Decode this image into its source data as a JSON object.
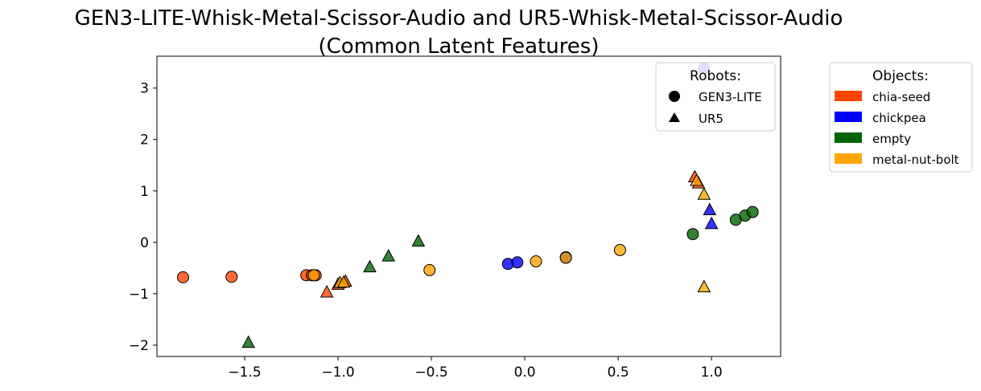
{
  "chart_data": {
    "type": "scatter",
    "title_line1": "GEN3-LITE-Whisk-Metal-Scissor-Audio and UR5-Whisk-Metal-Scissor-Audio",
    "title_line2": "(Common Latent Features)",
    "xlabel": "",
    "ylabel": "",
    "xlim": [
      -1.97,
      1.37
    ],
    "ylim": [
      -2.22,
      3.62
    ],
    "x_ticks": [
      -1.5,
      -1.0,
      -0.5,
      0.0,
      0.5,
      1.0
    ],
    "x_tick_labels": [
      "−1.5",
      "−1.0",
      "−0.5",
      "0.0",
      "0.5",
      "1.0"
    ],
    "y_ticks": [
      -2,
      -1,
      0,
      1,
      2,
      3
    ],
    "y_tick_labels": [
      "−2",
      "−1",
      "0",
      "1",
      "2",
      "3"
    ],
    "grid": false,
    "legend_robots": {
      "title": "Robots:",
      "placement": "top-right inside plot",
      "entries": [
        {
          "label": "GEN3-LITE",
          "marker": "circle"
        },
        {
          "label": "UR5",
          "marker": "triangle"
        }
      ]
    },
    "legend_objects": {
      "title": "Objects:",
      "placement": "right outside plot",
      "entries": [
        {
          "label": "chia-seed",
          "color": "#FF4500"
        },
        {
          "label": "chickpea",
          "color": "#0000FF"
        },
        {
          "label": "empty",
          "color": "#006400"
        },
        {
          "label": "metal-nut-bolt",
          "color": "#FFA500"
        }
      ]
    },
    "series": [
      {
        "robot": "GEN3-LITE",
        "object": "chia-seed",
        "marker": "circle",
        "color": "#FF4500",
        "points": [
          [
            -1.83,
            -0.68
          ],
          [
            -1.57,
            -0.67
          ],
          [
            -1.17,
            -0.64
          ],
          [
            -1.14,
            -0.64
          ],
          [
            -1.12,
            -0.64
          ]
        ]
      },
      {
        "robot": "GEN3-LITE",
        "object": "chickpea",
        "marker": "circle",
        "color": "#0000FF",
        "points": [
          [
            -0.09,
            -0.42
          ],
          [
            -0.04,
            -0.39
          ],
          [
            0.22,
            -0.29
          ],
          [
            0.96,
            3.38
          ]
        ]
      },
      {
        "robot": "GEN3-LITE",
        "object": "empty",
        "marker": "circle",
        "color": "#006400",
        "points": [
          [
            0.9,
            0.16
          ],
          [
            1.13,
            0.44
          ],
          [
            1.18,
            0.52
          ],
          [
            1.22,
            0.59
          ]
        ]
      },
      {
        "robot": "GEN3-LITE",
        "object": "metal-nut-bolt",
        "marker": "circle",
        "color": "#FFA500",
        "points": [
          [
            -1.13,
            -0.64
          ],
          [
            -0.51,
            -0.54
          ],
          [
            0.06,
            -0.37
          ],
          [
            0.22,
            -0.3
          ],
          [
            0.51,
            -0.15
          ]
        ]
      },
      {
        "robot": "UR5",
        "object": "chia-seed",
        "marker": "triangle",
        "color": "#FF4500",
        "points": [
          [
            -1.06,
            -0.97
          ],
          [
            -1.0,
            -0.82
          ],
          [
            -0.96,
            -0.76
          ],
          [
            0.91,
            1.27
          ],
          [
            0.93,
            1.15
          ]
        ]
      },
      {
        "robot": "UR5",
        "object": "chickpea",
        "marker": "triangle",
        "color": "#0000FF",
        "points": [
          [
            0.99,
            0.63
          ],
          [
            1.0,
            0.36
          ]
        ]
      },
      {
        "robot": "UR5",
        "object": "empty",
        "marker": "triangle",
        "color": "#006400",
        "points": [
          [
            -1.48,
            -1.95
          ],
          [
            -0.83,
            -0.48
          ],
          [
            -0.73,
            -0.27
          ],
          [
            -0.57,
            0.02
          ]
        ]
      },
      {
        "robot": "UR5",
        "object": "metal-nut-bolt",
        "marker": "triangle",
        "color": "#FFA500",
        "points": [
          [
            -0.99,
            -0.79
          ],
          [
            -0.97,
            -0.78
          ],
          [
            0.92,
            1.2
          ],
          [
            0.96,
            0.93
          ],
          [
            0.96,
            -0.87
          ]
        ]
      }
    ]
  }
}
